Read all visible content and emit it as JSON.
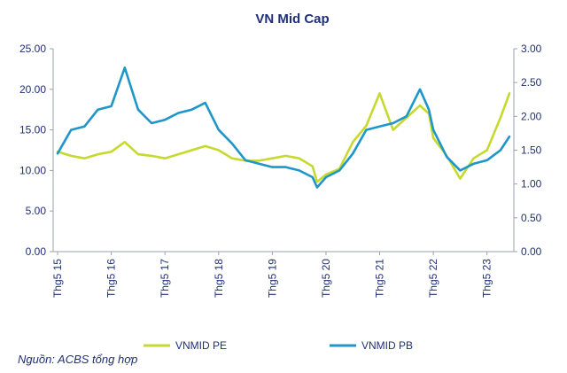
{
  "chart_data": {
    "type": "line",
    "title": "VN Mid Cap",
    "x": [
      "2015-05",
      "2015-08",
      "2015-11",
      "2016-02",
      "2016-05",
      "2016-08",
      "2016-11",
      "2017-02",
      "2017-05",
      "2017-08",
      "2017-11",
      "2018-02",
      "2018-05",
      "2018-08",
      "2018-11",
      "2019-02",
      "2019-05",
      "2019-08",
      "2019-11",
      "2020-02",
      "2020-03",
      "2020-05",
      "2020-08",
      "2020-11",
      "2021-02",
      "2021-05",
      "2021-08",
      "2021-11",
      "2022-02",
      "2022-04",
      "2022-05",
      "2022-08",
      "2022-11",
      "2023-02",
      "2023-05",
      "2023-08",
      "2023-10"
    ],
    "x_tick_labels": [
      "Thg5 15",
      "Thg5 16",
      "Thg5 17",
      "Thg5 18",
      "Thg5 19",
      "Thg5 20",
      "Thg5 21",
      "Thg5 22",
      "Thg5 23"
    ],
    "y_left": {
      "ylim": [
        0,
        25
      ],
      "tick_labels": [
        "0.00",
        "5.00",
        "10.00",
        "15.00",
        "20.00",
        "25.00"
      ]
    },
    "y_right": {
      "ylim": [
        0,
        3
      ],
      "tick_labels": [
        "0.00",
        "0.50",
        "1.00",
        "1.50",
        "2.00",
        "2.50",
        "3.00"
      ]
    },
    "series": [
      {
        "name": "VNMID PE",
        "axis": "left",
        "color": "#c6d92f",
        "values": [
          12.3,
          11.8,
          11.5,
          12.0,
          12.3,
          13.5,
          12.0,
          11.8,
          11.5,
          12.0,
          12.5,
          13.0,
          12.5,
          11.5,
          11.2,
          11.2,
          11.5,
          11.8,
          11.5,
          10.5,
          8.6,
          9.5,
          10.2,
          13.5,
          15.5,
          19.5,
          15.0,
          16.5,
          18.0,
          17.0,
          14.0,
          11.8,
          9.0,
          11.5,
          12.5,
          16.5,
          19.5
        ]
      },
      {
        "name": "VNMID PB",
        "axis": "right",
        "color": "#1e96c8",
        "values": [
          1.45,
          1.8,
          1.85,
          2.1,
          2.15,
          2.72,
          2.1,
          1.9,
          1.95,
          2.05,
          2.1,
          2.2,
          1.8,
          1.6,
          1.35,
          1.3,
          1.25,
          1.25,
          1.2,
          1.1,
          0.95,
          1.1,
          1.2,
          1.45,
          1.8,
          1.85,
          1.9,
          2.0,
          2.4,
          2.1,
          1.8,
          1.4,
          1.2,
          1.3,
          1.35,
          1.5,
          1.7
        ]
      }
    ],
    "legend": {
      "placement": "bottom"
    },
    "source": "Nguồn: ACBS tổng hợp"
  }
}
